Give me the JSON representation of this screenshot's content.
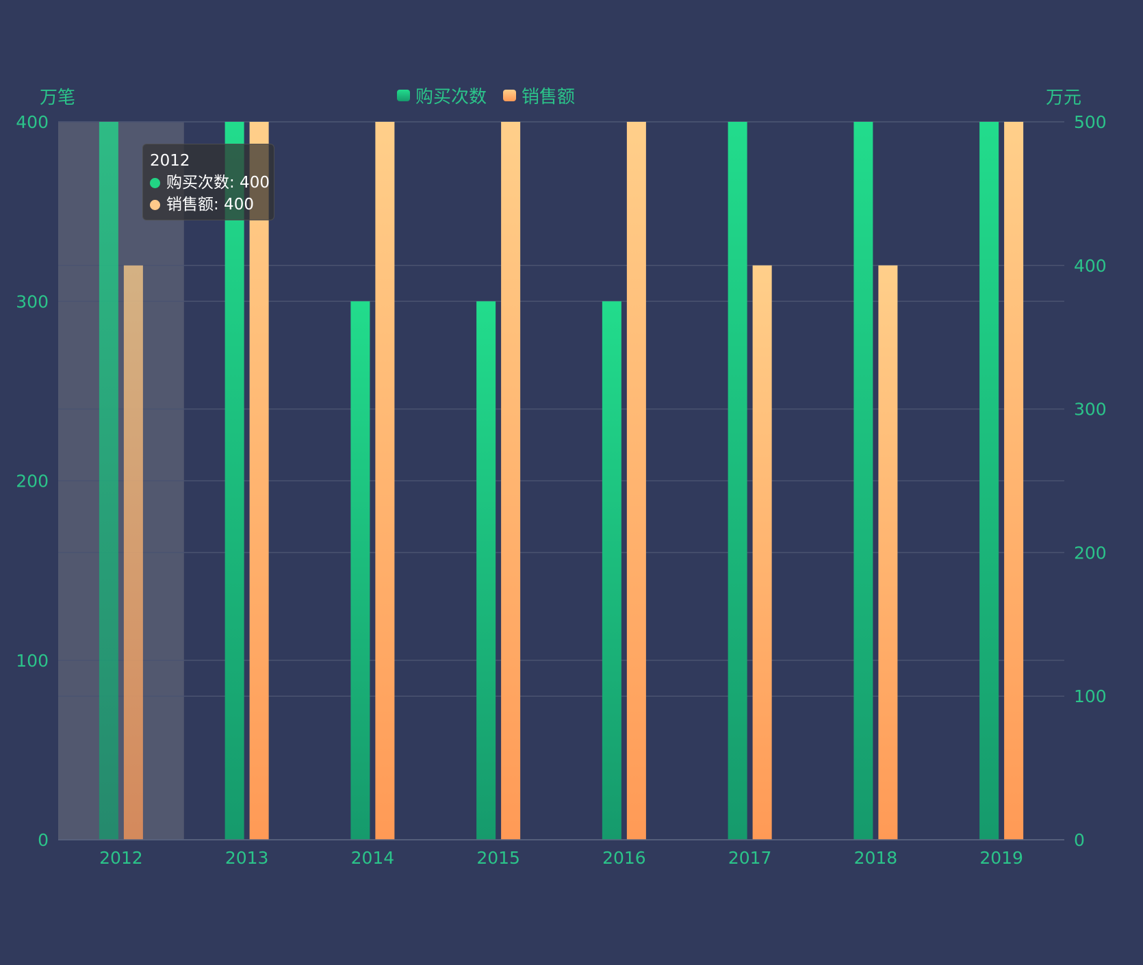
{
  "chart_data": {
    "type": "bar",
    "categories": [
      "2012",
      "2013",
      "2014",
      "2015",
      "2016",
      "2017",
      "2018",
      "2019"
    ],
    "series": [
      {
        "name": "购买次数",
        "axis": "left",
        "values": [
          400,
          400,
          300,
          300,
          300,
          400,
          400,
          400
        ]
      },
      {
        "name": "销售额",
        "axis": "right",
        "values": [
          400,
          500,
          500,
          500,
          500,
          400,
          400,
          500
        ]
      }
    ],
    "y_left": {
      "label": "万笔",
      "min": 0,
      "max": 400,
      "ticks": [
        "0",
        "100",
        "200",
        "300",
        "400"
      ]
    },
    "y_right": {
      "label": "万元",
      "min": 0,
      "max": 500,
      "ticks": [
        "0",
        "100",
        "200",
        "300",
        "400",
        "500"
      ]
    },
    "legend_position": "top-center",
    "grid": true,
    "highlighted_category": "2012"
  },
  "tooltip": {
    "title": "2012",
    "items": [
      {
        "text": "购买次数: 400",
        "color": "#22d384"
      },
      {
        "text": "销售额: 400",
        "color": "#ffc98a"
      }
    ]
  },
  "colors": {
    "background": "#313a5c",
    "axis_text": "#2bc48a",
    "green_top": "#22dc8c",
    "green_bottom": "#169a6c",
    "orange_top": "#ffcf8a",
    "orange_bottom": "#ff9a56",
    "grid": "#4a5370",
    "highlight": "#52586f"
  }
}
